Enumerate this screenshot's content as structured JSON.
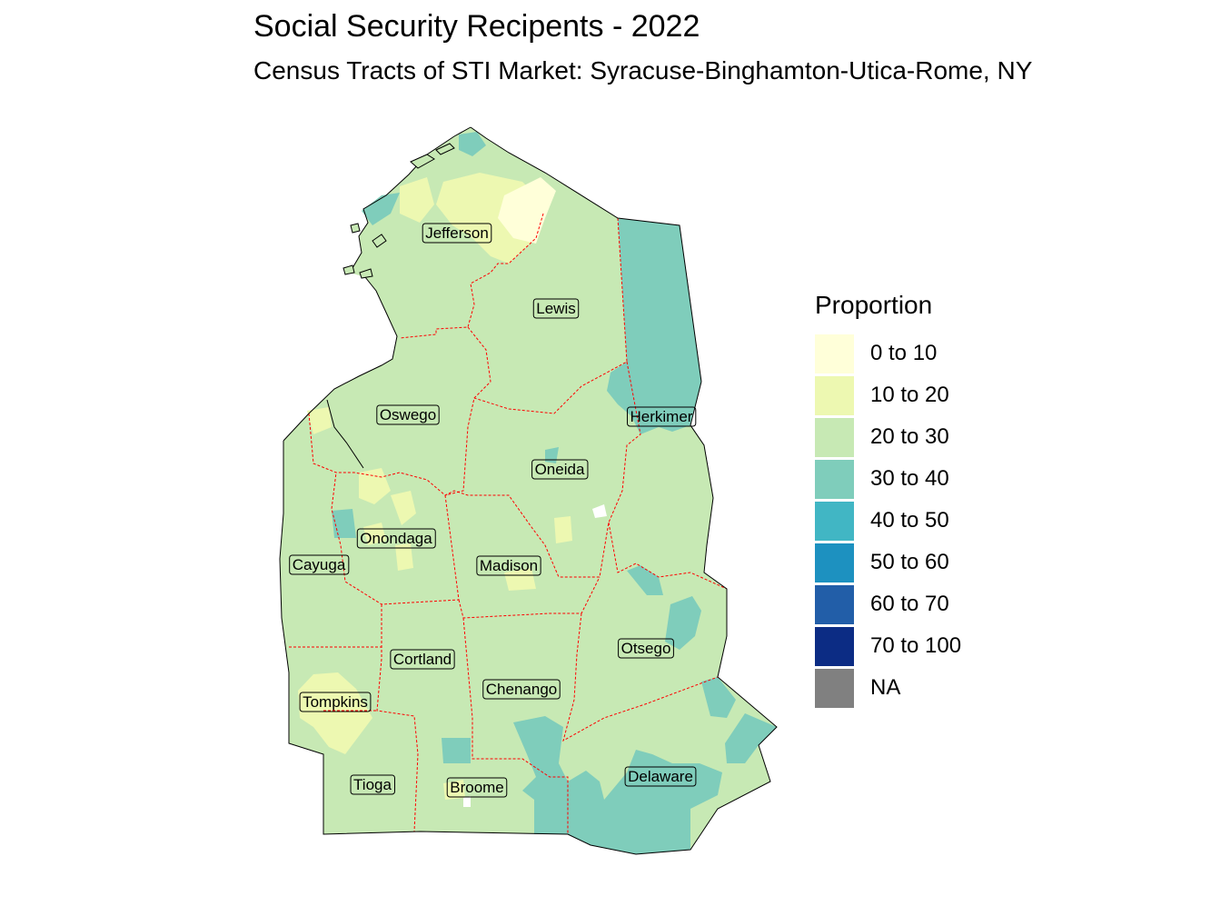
{
  "title": "Social Security Recipents - 2022",
  "subtitle": "Census Tracts of STI Market: Syracuse-Binghamton-Utica-Rome, NY",
  "legend": {
    "title": "Proportion",
    "items": [
      {
        "label": "0 to 10",
        "color": "#ffffd9"
      },
      {
        "label": "10 to 20",
        "color": "#edf8b1"
      },
      {
        "label": "20 to 30",
        "color": "#c7e9b4"
      },
      {
        "label": "30 to 40",
        "color": "#7fcdbb"
      },
      {
        "label": "40 to 50",
        "color": "#41b6c4"
      },
      {
        "label": "50 to 60",
        "color": "#1d91c0"
      },
      {
        "label": "60 to 70",
        "color": "#225ea8"
      },
      {
        "label": "70 to 100",
        "color": "#0c2c84"
      },
      {
        "label": "NA",
        "color": "#808080"
      }
    ]
  },
  "counties": [
    {
      "name": "Jefferson"
    },
    {
      "name": "Lewis"
    },
    {
      "name": "Oswego"
    },
    {
      "name": "Herkimer"
    },
    {
      "name": "Oneida"
    },
    {
      "name": "Onondaga"
    },
    {
      "name": "Cayuga"
    },
    {
      "name": "Madison"
    },
    {
      "name": "Cortland"
    },
    {
      "name": "Otsego"
    },
    {
      "name": "Chenango"
    },
    {
      "name": "Tompkins"
    },
    {
      "name": "Delaware"
    },
    {
      "name": "Tioga"
    },
    {
      "name": "Broome"
    }
  ],
  "colors": {
    "boundary": "#ff0000",
    "outline": "#000000",
    "base": "#c7e9b4"
  }
}
